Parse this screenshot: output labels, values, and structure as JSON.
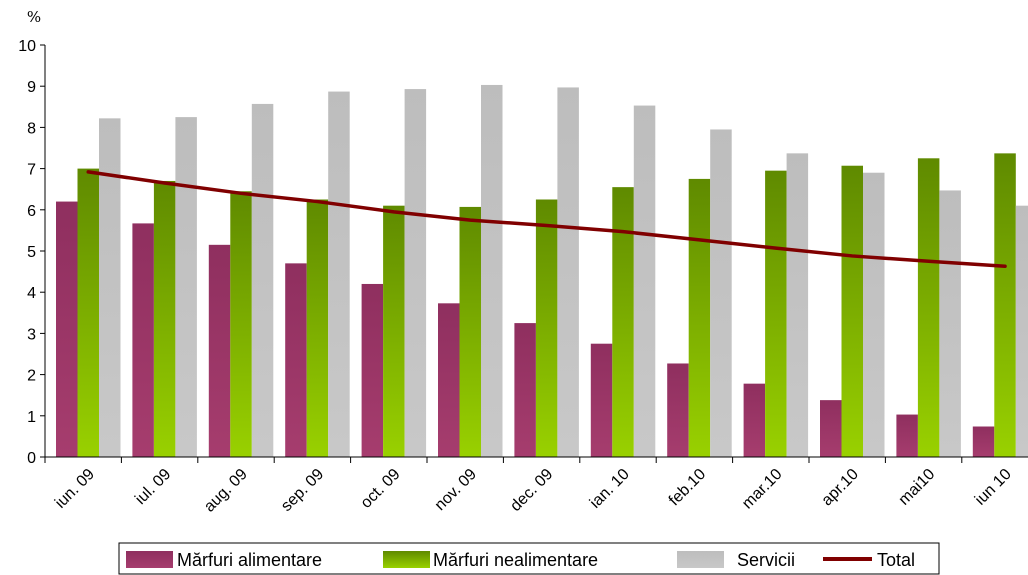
{
  "chart_data": {
    "type": "bar",
    "unit_label": "%",
    "categories": [
      "iun. 09",
      "iul. 09",
      "aug. 09",
      "sep. 09",
      "oct. 09",
      "nov. 09",
      "dec. 09",
      "ian. 10",
      "feb.10",
      "mar.10",
      "apr.10",
      "mai10",
      "iun 10"
    ],
    "series": [
      {
        "name": "Mărfuri alimentare",
        "kind": "bar",
        "color": "#993366",
        "values": [
          6.2,
          5.67,
          5.15,
          4.7,
          4.2,
          3.73,
          3.25,
          2.75,
          2.27,
          1.78,
          1.38,
          1.03,
          0.74
        ]
      },
      {
        "name": "Mărfuri nealimentare",
        "kind": "bar",
        "color": "#669900",
        "values": [
          7.0,
          6.7,
          6.45,
          6.25,
          6.1,
          6.07,
          6.25,
          6.55,
          6.75,
          6.95,
          7.07,
          7.25,
          7.37
        ]
      },
      {
        "name": "Servicii",
        "kind": "bar",
        "color": "#c0c0c0",
        "values": [
          8.22,
          8.25,
          8.57,
          8.87,
          8.93,
          9.03,
          8.97,
          8.53,
          7.95,
          7.37,
          6.9,
          6.47,
          6.1
        ]
      },
      {
        "name": "Total",
        "kind": "line",
        "color": "#800000",
        "values": [
          6.92,
          6.65,
          6.4,
          6.2,
          5.95,
          5.75,
          5.62,
          5.47,
          5.27,
          5.07,
          4.88,
          4.75,
          4.63
        ]
      }
    ],
    "ylim": [
      0,
      10
    ],
    "yticks": [
      0,
      1,
      2,
      3,
      4,
      5,
      6,
      7,
      8,
      9,
      10
    ],
    "grid": false,
    "legend_position": "bottom"
  }
}
